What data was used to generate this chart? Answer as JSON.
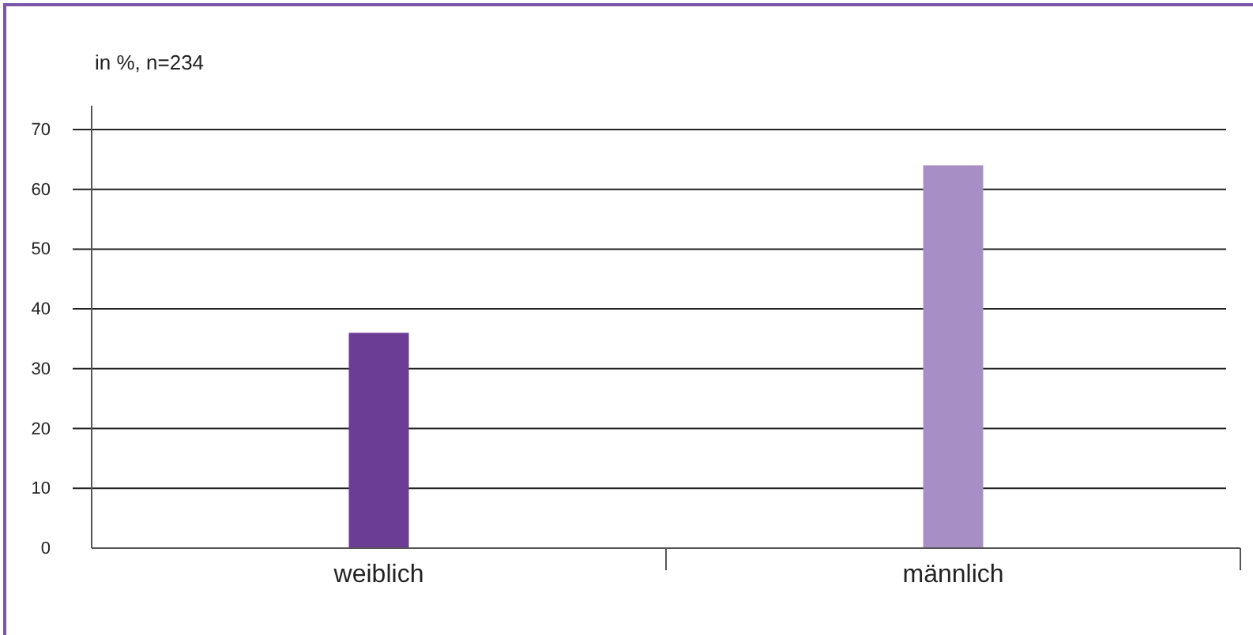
{
  "chart_data": {
    "type": "bar",
    "ylabel": "in %, n=234",
    "categories": [
      "weiblich",
      "männlich"
    ],
    "values": [
      36,
      64
    ],
    "colors": [
      "#6b3d94",
      "#a78fc6"
    ],
    "ylim": [
      0,
      74
    ],
    "yticks": [
      0,
      10,
      20,
      30,
      40,
      50,
      60,
      70
    ],
    "grid": "y"
  }
}
